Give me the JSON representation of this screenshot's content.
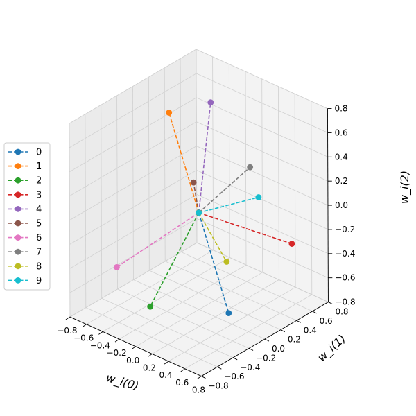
{
  "chart_data": {
    "type": "line3d",
    "title": "",
    "xlabel": "w_i(0)",
    "ylabel": "w_i(1)",
    "zlabel": "w_i(2)",
    "xlim": [
      -0.8,
      0.8
    ],
    "ylim": [
      -0.8,
      0.8
    ],
    "zlim": [
      -0.8,
      0.8
    ],
    "ticks": [
      -0.8,
      -0.6,
      -0.4,
      -0.2,
      0.0,
      0.2,
      0.4,
      0.6,
      0.8
    ],
    "tick_labels": [
      "−0.8",
      "−0.6",
      "−0.4",
      "−0.2",
      "0.0",
      "0.2",
      "0.4",
      "0.6",
      "0.8"
    ],
    "grid": true,
    "legend_position": "left",
    "origin": [
      0,
      0,
      0
    ],
    "series": [
      {
        "name": "0",
        "color": "#1f77b4",
        "point": [
          0.36,
          0.0,
          -0.72
        ]
      },
      {
        "name": "1",
        "color": "#ff7f0e",
        "point": [
          -0.64,
          0.29,
          0.52
        ]
      },
      {
        "name": "2",
        "color": "#2ca02c",
        "point": [
          -0.17,
          -0.44,
          -0.66
        ]
      },
      {
        "name": "3",
        "color": "#d62728",
        "point": [
          0.62,
          0.53,
          -0.27
        ]
      },
      {
        "name": "4",
        "color": "#9467bd",
        "point": [
          -0.19,
          0.35,
          0.72
        ]
      },
      {
        "name": "5",
        "color": "#8c564b",
        "point": [
          -0.15,
          0.09,
          0.17
        ]
      },
      {
        "name": "6",
        "color": "#e377c2",
        "point": [
          -0.45,
          -0.57,
          -0.37
        ]
      },
      {
        "name": "7",
        "color": "#7f7f7f",
        "point": [
          0.23,
          0.41,
          0.29
        ]
      },
      {
        "name": "8",
        "color": "#bcbd22",
        "point": [
          0.24,
          0.1,
          -0.37
        ]
      },
      {
        "name": "9",
        "color": "#17becf",
        "point": [
          0.4,
          0.34,
          0.12
        ]
      }
    ]
  }
}
